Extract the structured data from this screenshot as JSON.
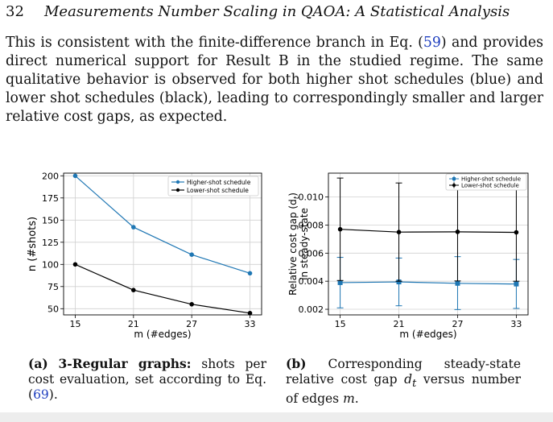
{
  "header": {
    "page_number": "32",
    "running_title": "Measurements Number Scaling in QAOA: A Statistical Analysis"
  },
  "paragraph": {
    "part1": "This is consistent with the finite-difference branch in Eq. (",
    "ref1": "59",
    "part2": ") and provides direct numerical support for Result B in the studied regime. The same qualitative behavior is observed for both higher shot schedules (blue) and lower shot schedules (black), leading to correspondingly smaller and larger relative cost gaps, as expected."
  },
  "chart_data": [
    {
      "type": "line",
      "xlabel": "m (#edges)",
      "ylabel": "n (#shots)",
      "x": [
        15,
        21,
        27,
        33
      ],
      "xticks": [
        "15",
        "21",
        "27",
        "33"
      ],
      "ylim": [
        43,
        203
      ],
      "yticks": [
        "50",
        "75",
        "100",
        "125",
        "150",
        "175",
        "200"
      ],
      "grid": true,
      "legend_placement": "top-right",
      "series": [
        {
          "name": "Higher-shot schedule",
          "color": "#1f77b4",
          "values": [
            200,
            142,
            111,
            90
          ]
        },
        {
          "name": "Lower-shot schedule",
          "color": "#000000",
          "values": [
            100,
            71,
            55,
            45
          ]
        }
      ]
    },
    {
      "type": "line",
      "xlabel": "m (#edges)",
      "ylabel_line1": "Relative cost gap (d",
      "ylabel_sub": "t",
      "ylabel_close": ")",
      "ylabel_line2": "in steady-state",
      "x": [
        15,
        21,
        27,
        33
      ],
      "xticks": [
        "15",
        "21",
        "27",
        "33"
      ],
      "ylim": [
        0.0016,
        0.0117
      ],
      "yticks": [
        "0.002",
        "0.004",
        "0.006",
        "0.008",
        "0.010"
      ],
      "grid": true,
      "legend_placement": "top-right",
      "series": [
        {
          "name": "Higher-shot schedule",
          "color": "#1f77b4",
          "marker": "square",
          "values": [
            0.0039,
            0.00395,
            0.00385,
            0.0038
          ],
          "err_low": [
            0.0021,
            0.00225,
            0.00198,
            0.00206
          ],
          "err_high": [
            0.0057,
            0.00565,
            0.00575,
            0.00555
          ]
        },
        {
          "name": "Lower-shot schedule",
          "color": "#000000",
          "marker": "circle",
          "values": [
            0.0077,
            0.0075,
            0.00752,
            0.00748
          ],
          "err_low": [
            0.00405,
            0.004,
            0.00402,
            0.004
          ],
          "err_high": [
            0.01135,
            0.011,
            0.0115,
            0.0115
          ]
        }
      ]
    }
  ],
  "captions": {
    "a_label": "(a)",
    "a_bold": "3-Regular graphs:",
    "a_text": " shots per cost evaluation, set according to Eq. (",
    "a_ref": "69",
    "a_end": ").",
    "b_label": "(b)",
    "b_text1": " Corresponding steady-state relative cost gap ",
    "b_var": "d",
    "b_sub": "t",
    "b_text2": " versus number of edges ",
    "b_var2": "m",
    "b_end": "."
  }
}
